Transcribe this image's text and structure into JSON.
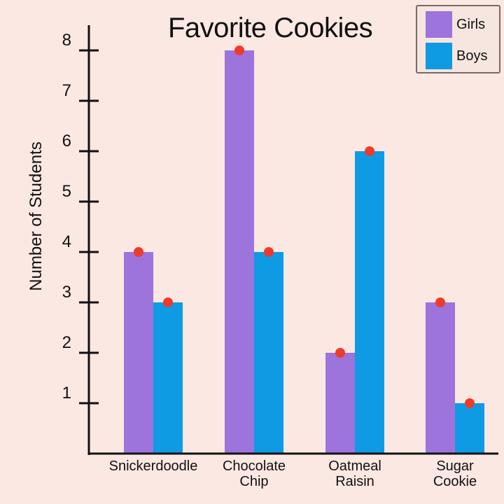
{
  "chart_data": {
    "type": "bar",
    "title": "Favorite Cookies",
    "xlabel": "",
    "ylabel": "Number of Students",
    "categories": [
      "Snickerdoodle",
      "Chocolate Chip",
      "Oatmeal Raisin",
      "Sugar Cookie"
    ],
    "category_lines": [
      [
        "Snickerdoodle"
      ],
      [
        "Chocolate",
        "Chip"
      ],
      [
        "Oatmeal",
        "Raisin"
      ],
      [
        "Sugar",
        "Cookie"
      ]
    ],
    "series": [
      {
        "name": "Girls",
        "color": "#9d73dc",
        "values": [
          4,
          8,
          2,
          3
        ]
      },
      {
        "name": "Boys",
        "color": "#0e9be3",
        "values": [
          3,
          4,
          6,
          1
        ]
      }
    ],
    "yticks": [
      1,
      2,
      3,
      4,
      5,
      6,
      7,
      8
    ],
    "ylim": [
      0,
      8.5
    ],
    "grid": false,
    "legend_position": "top-right",
    "marker_color": "#f03a2a"
  },
  "title": "Favorite Cookies",
  "ylabel": "Number of Students",
  "legend": [
    {
      "label": "Girls",
      "color": "#9d73dc"
    },
    {
      "label": "Boys",
      "color": "#0e9be3"
    }
  ]
}
